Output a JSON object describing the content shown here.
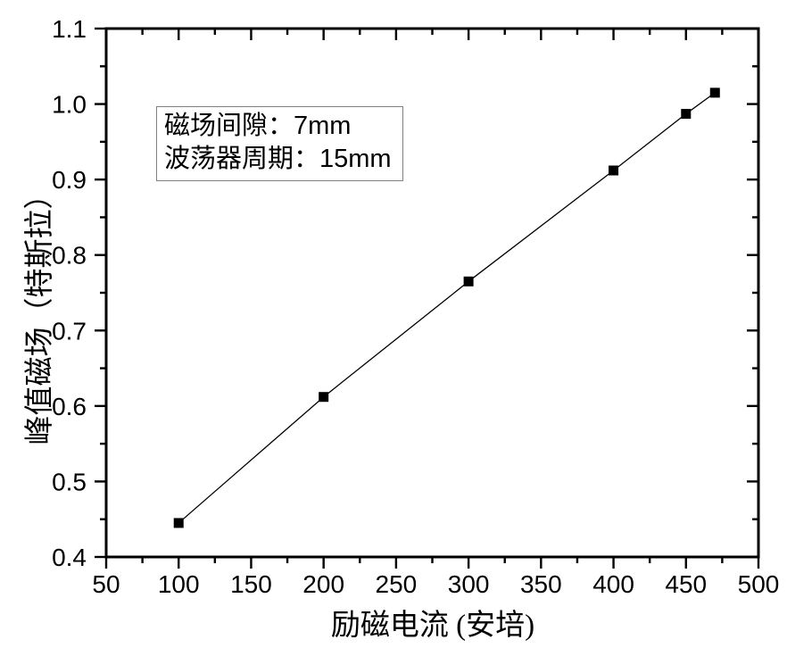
{
  "chart_data": {
    "type": "line",
    "title": "",
    "xlabel": "励磁电流 (安培)",
    "ylabel": "峰值磁场（特斯拉）",
    "xlim": [
      50,
      500
    ],
    "ylim": [
      0.4,
      1.1
    ],
    "x_major_ticks": [
      50,
      100,
      150,
      200,
      250,
      300,
      350,
      400,
      450,
      500
    ],
    "x_minor_step": 25,
    "y_major_ticks": [
      0.4,
      0.5,
      0.6,
      0.7,
      0.8,
      0.9,
      1.0,
      1.1
    ],
    "y_minor_step": 0.05,
    "grid": false,
    "legend": "none",
    "series": [
      {
        "name": "peak-magnetic-field",
        "x": [
          100,
          200,
          300,
          400,
          450,
          470
        ],
        "y": [
          0.445,
          0.612,
          0.765,
          0.912,
          0.987,
          1.015
        ],
        "marker": "square",
        "color": "#000000"
      }
    ],
    "annotation": {
      "lines": [
        "磁场间隙：7mm",
        "波荡器周期：15mm"
      ]
    },
    "colors": {
      "background": "#ffffff",
      "axis": "#000000",
      "text": "#000000",
      "annotation_border": "#808080"
    }
  }
}
